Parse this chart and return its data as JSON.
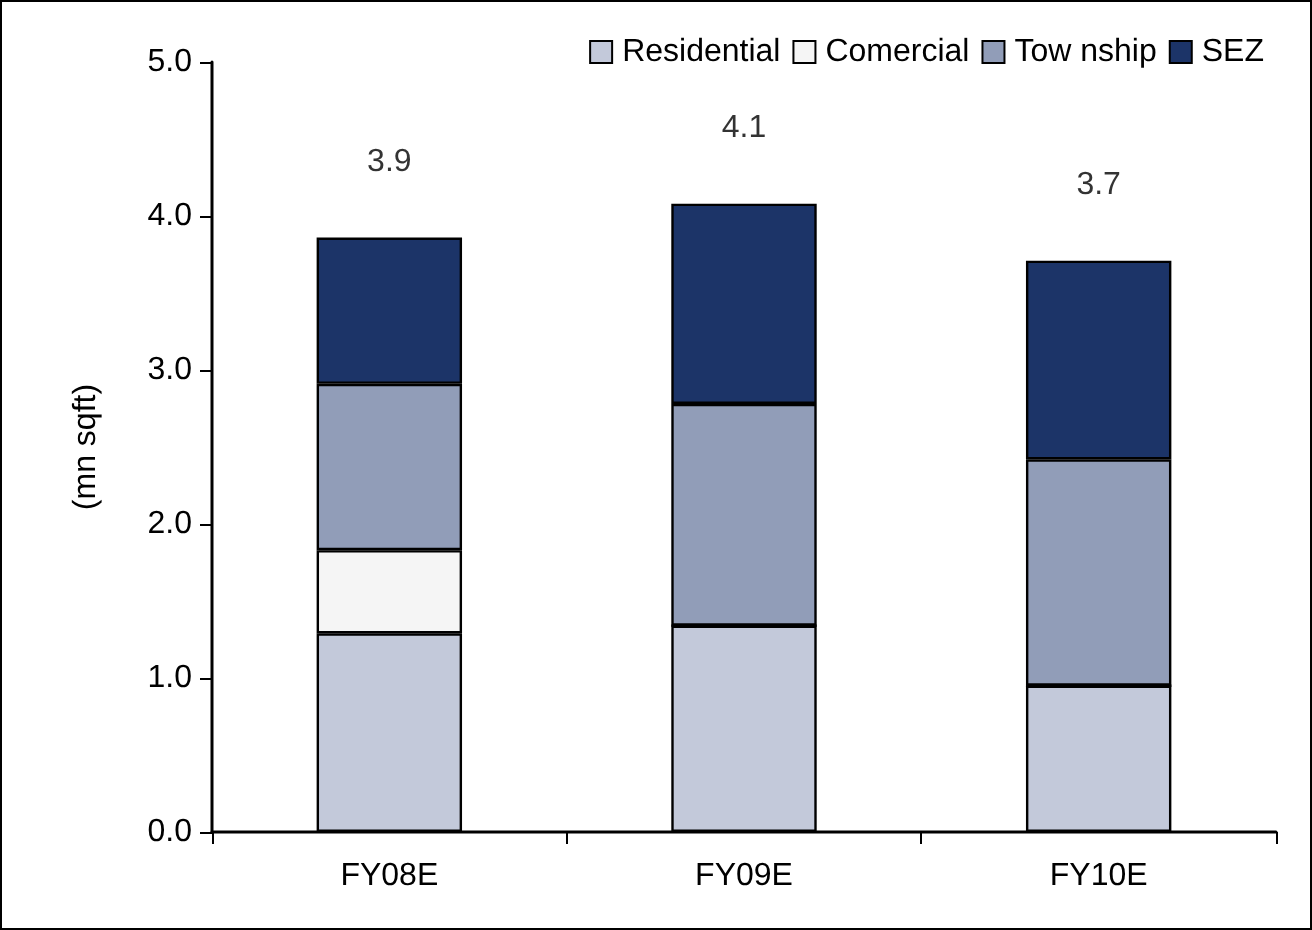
{
  "chart_data": {
    "type": "bar",
    "stacked": true,
    "ylabel": "(mn sqft)",
    "categories": [
      "FY08E",
      "FY09E",
      "FY10E"
    ],
    "series": [
      {
        "name": "Residential",
        "color": "#c3c9da",
        "values": [
          1.29,
          1.34,
          0.95
        ]
      },
      {
        "name": "Comercial",
        "color": "#f5f5f5",
        "values": [
          0.54,
          0,
          0
        ]
      },
      {
        "name": "Tow nship",
        "color": "#919db8",
        "values": [
          1.08,
          1.44,
          1.47
        ]
      },
      {
        "name": "SEZ",
        "color": "#1c3468",
        "values": [
          0.95,
          1.3,
          1.29
        ]
      }
    ],
    "totals": [
      "3.9",
      "4.1",
      "3.7"
    ],
    "ylim": [
      0,
      5
    ],
    "yticks": [
      {
        "value": 0,
        "label": "0.0"
      },
      {
        "value": 1,
        "label": "1.0"
      },
      {
        "value": 2,
        "label": "2.0"
      },
      {
        "value": 3,
        "label": "3.0"
      },
      {
        "value": 4,
        "label": "4.0"
      },
      {
        "value": 5,
        "label": "5.0"
      }
    ],
    "grid": false,
    "legend": "top right"
  }
}
